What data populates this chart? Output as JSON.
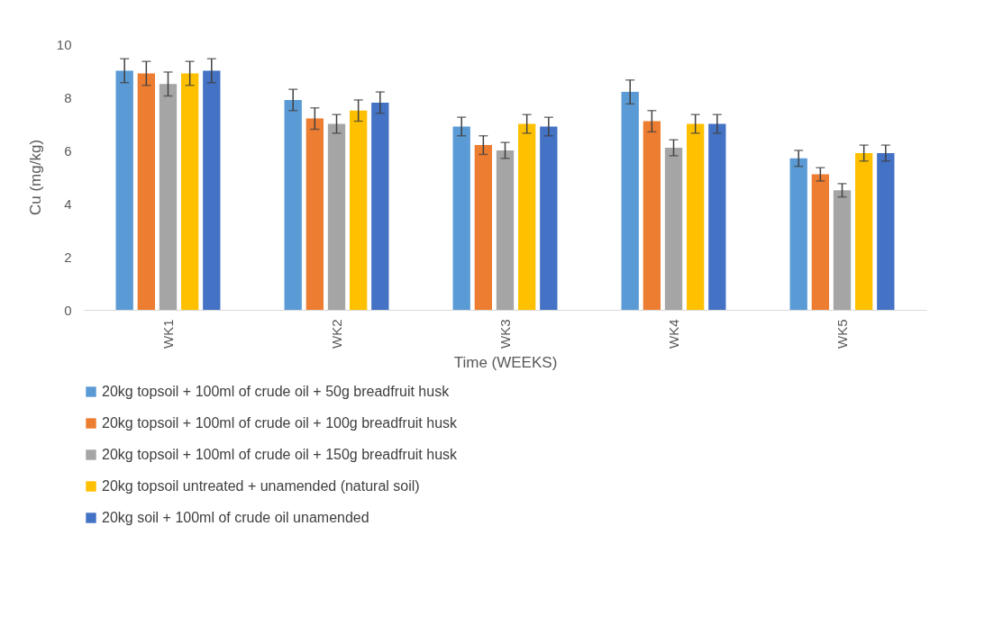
{
  "chart_data": {
    "type": "bar",
    "xlabel": "Time (WEEKS)",
    "ylabel": "Cu  (mg/kg)",
    "categories": [
      "WK1",
      "WK2",
      "WK3",
      "WK4",
      "WK5"
    ],
    "series": [
      {
        "name": "20kg topsoil + 100ml of crude oil + 50g breadfruit husk",
        "color": "#5b9bd5",
        "values": [
          9.0,
          7.9,
          6.9,
          8.2,
          5.7
        ],
        "errors": [
          0.45,
          0.4,
          0.35,
          0.45,
          0.3
        ]
      },
      {
        "name": "20kg topsoil + 100ml of crude oil + 100g breadfruit husk",
        "color": "#ed7d31",
        "values": [
          8.9,
          7.2,
          6.2,
          7.1,
          5.1
        ],
        "errors": [
          0.45,
          0.4,
          0.35,
          0.4,
          0.25
        ]
      },
      {
        "name": "20kg topsoil + 100ml of crude oil + 150g breadfruit husk",
        "color": "#a5a5a5",
        "values": [
          8.5,
          7.0,
          6.0,
          6.1,
          4.5
        ],
        "errors": [
          0.45,
          0.35,
          0.3,
          0.3,
          0.25
        ]
      },
      {
        "name": "20kg topsoil untreated + unamended (natural soil)",
        "color": "#ffc000",
        "values": [
          8.9,
          7.5,
          7.0,
          7.0,
          5.9
        ],
        "errors": [
          0.45,
          0.4,
          0.35,
          0.35,
          0.3
        ]
      },
      {
        "name": "20kg soil + 100ml of crude oil unamended",
        "color": "#4472c4",
        "values": [
          9.0,
          7.8,
          6.9,
          7.0,
          5.9
        ],
        "errors": [
          0.45,
          0.4,
          0.35,
          0.35,
          0.3
        ]
      }
    ],
    "ylim": [
      0,
      10
    ],
    "yticks": [
      0,
      2,
      4,
      6,
      8,
      10
    ],
    "grid": false,
    "legend": "bottom"
  }
}
